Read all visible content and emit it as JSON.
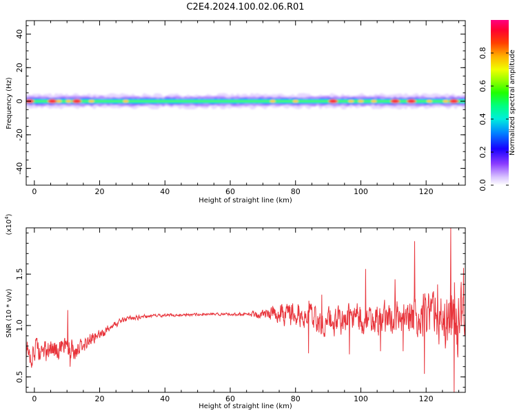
{
  "title": "C2E4.2024.100.02.06.R01",
  "chart_data": [
    {
      "type": "heatmap",
      "name": "spectrogram",
      "xlabel": "Height of straight line (km)",
      "ylabel": "Frequency (Hz)",
      "xlim": [
        -2.5,
        132
      ],
      "ylim": [
        -50,
        48
      ],
      "xticks": [
        0,
        20,
        40,
        60,
        80,
        100,
        120
      ],
      "yticks": [
        -40,
        -20,
        0,
        20,
        40
      ],
      "colorbar": {
        "label": "Normalized spectral amplitude",
        "range": [
          0,
          1
        ],
        "ticks": [
          "0.0",
          "0.2",
          "0.4",
          "0.6",
          "0.8"
        ]
      },
      "band_center_hz": 0,
      "peak_amplitude_x_km": [
        -1.5,
        5.5,
        13.0,
        91.5,
        110.5,
        115.5,
        128.5
      ],
      "high_amplitude_x_km": [
        7.5,
        10.5,
        17.5,
        28,
        73,
        80,
        97,
        100,
        104,
        121,
        126
      ]
    },
    {
      "type": "line",
      "name": "snr",
      "xlabel": "Height of straight line (km)",
      "ylabel": "SNR (10 * v/v)",
      "scale_label": "(x10^4)",
      "xlim": [
        -2.5,
        132
      ],
      "ylim": [
        0.35,
        1.95
      ],
      "xticks": [
        0,
        20,
        40,
        60,
        80,
        100,
        120
      ],
      "yticks": [
        "0.5",
        "1.0",
        "1.5"
      ],
      "line_color": "#e8333a",
      "series_profile": {
        "x": [
          -2.5,
          0,
          5,
          10,
          12,
          15,
          18,
          20,
          23,
          25,
          28,
          30,
          35,
          40,
          45,
          50,
          55,
          60,
          65,
          70,
          75,
          80,
          85,
          90,
          95,
          100,
          105,
          110,
          115,
          120,
          125,
          128,
          130,
          132
        ],
        "mean": [
          0.72,
          0.75,
          0.74,
          0.8,
          0.74,
          0.8,
          0.9,
          0.9,
          0.98,
          1.02,
          1.06,
          1.07,
          1.09,
          1.1,
          1.1,
          1.11,
          1.11,
          1.11,
          1.11,
          1.11,
          1.12,
          1.1,
          1.08,
          1.05,
          1.06,
          1.05,
          1.05,
          1.07,
          1.08,
          1.1,
          1.05,
          1.1,
          1.05,
          1.1
        ],
        "amplitude": [
          0.15,
          0.14,
          0.12,
          0.14,
          0.1,
          0.1,
          0.08,
          0.06,
          0.05,
          0.04,
          0.03,
          0.03,
          0.02,
          0.015,
          0.015,
          0.015,
          0.015,
          0.015,
          0.02,
          0.05,
          0.12,
          0.14,
          0.14,
          0.16,
          0.16,
          0.18,
          0.17,
          0.2,
          0.22,
          0.26,
          0.3,
          0.45,
          0.35,
          0.3
        ]
      },
      "spikes": [
        {
          "x": 10.2,
          "y": 1.15
        },
        {
          "x": 11.0,
          "y": 0.6
        },
        {
          "x": 84.0,
          "y": 0.73
        },
        {
          "x": 88.0,
          "y": 1.3
        },
        {
          "x": 96.5,
          "y": 0.72
        },
        {
          "x": 101.5,
          "y": 1.55
        },
        {
          "x": 106.0,
          "y": 0.75
        },
        {
          "x": 110.5,
          "y": 1.45
        },
        {
          "x": 113.0,
          "y": 0.75
        },
        {
          "x": 116.5,
          "y": 1.82
        },
        {
          "x": 119.5,
          "y": 0.53
        },
        {
          "x": 123.5,
          "y": 1.4
        },
        {
          "x": 127.5,
          "y": 1.95
        },
        {
          "x": 128.6,
          "y": 0.35
        },
        {
          "x": 129.5,
          "y": 1.0
        },
        {
          "x": 131.5,
          "y": 1.56
        }
      ]
    }
  ]
}
